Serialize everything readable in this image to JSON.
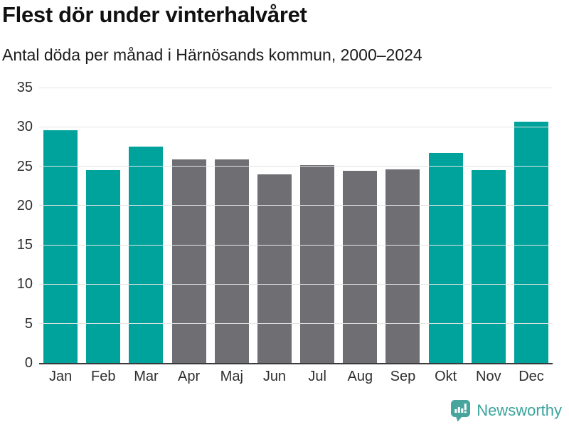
{
  "header": {
    "title": "Flest dör under vinterhalvåret",
    "subtitle": "Antal döda per månad i Härnösands kommun, 2000–2024"
  },
  "chart_data": {
    "type": "bar",
    "title": "Flest dör under vinterhalvåret",
    "subtitle": "Antal döda per månad i Härnösands kommun, 2000–2024",
    "categories": [
      "Jan",
      "Feb",
      "Mar",
      "Apr",
      "Maj",
      "Jun",
      "Jul",
      "Aug",
      "Sep",
      "Okt",
      "Nov",
      "Dec"
    ],
    "values": [
      29.6,
      24.5,
      27.5,
      25.9,
      25.9,
      24.0,
      25.1,
      24.4,
      24.6,
      26.7,
      24.5,
      30.7
    ],
    "winter_months": [
      true,
      true,
      true,
      false,
      false,
      false,
      false,
      false,
      false,
      true,
      true,
      true
    ],
    "xlabel": "",
    "ylabel": "",
    "ylim": [
      0,
      35
    ],
    "yticks": [
      0,
      5,
      10,
      15,
      20,
      25,
      30,
      35
    ],
    "grid": true,
    "legend": false,
    "color_winter": "#00a39c",
    "color_summer": "#6f6e73",
    "gridline_color": "#e4e4e4",
    "axis_color": "#3b3b3b"
  },
  "footer": {
    "brand": "Newsworthy",
    "logo_icon": "bar-chart-speech-bubble-icon",
    "brand_color": "#3ba49c",
    "icon_color": "#47a59d"
  }
}
